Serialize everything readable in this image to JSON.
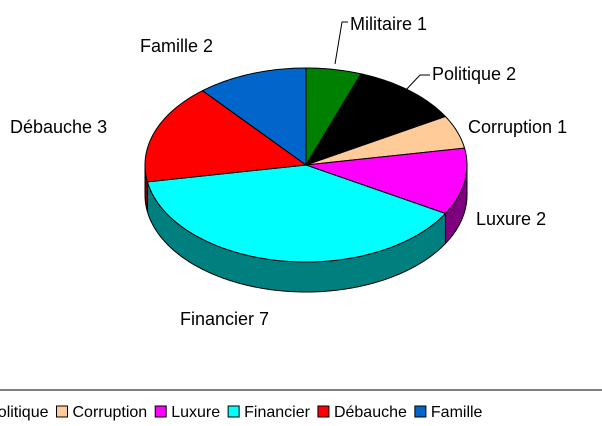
{
  "chart_data": {
    "type": "pie",
    "categories": [
      "Militaire",
      "Politique",
      "Corruption",
      "Luxure",
      "Financier",
      "Débauche",
      "Famille"
    ],
    "values": [
      1,
      2,
      1,
      2,
      7,
      3,
      2
    ],
    "colors": [
      "#008000",
      "#000000",
      "#FFCC99",
      "#FF00FF",
      "#00FFFF",
      "#FF0000",
      "#0066CC"
    ],
    "legend": "bottom"
  }
}
